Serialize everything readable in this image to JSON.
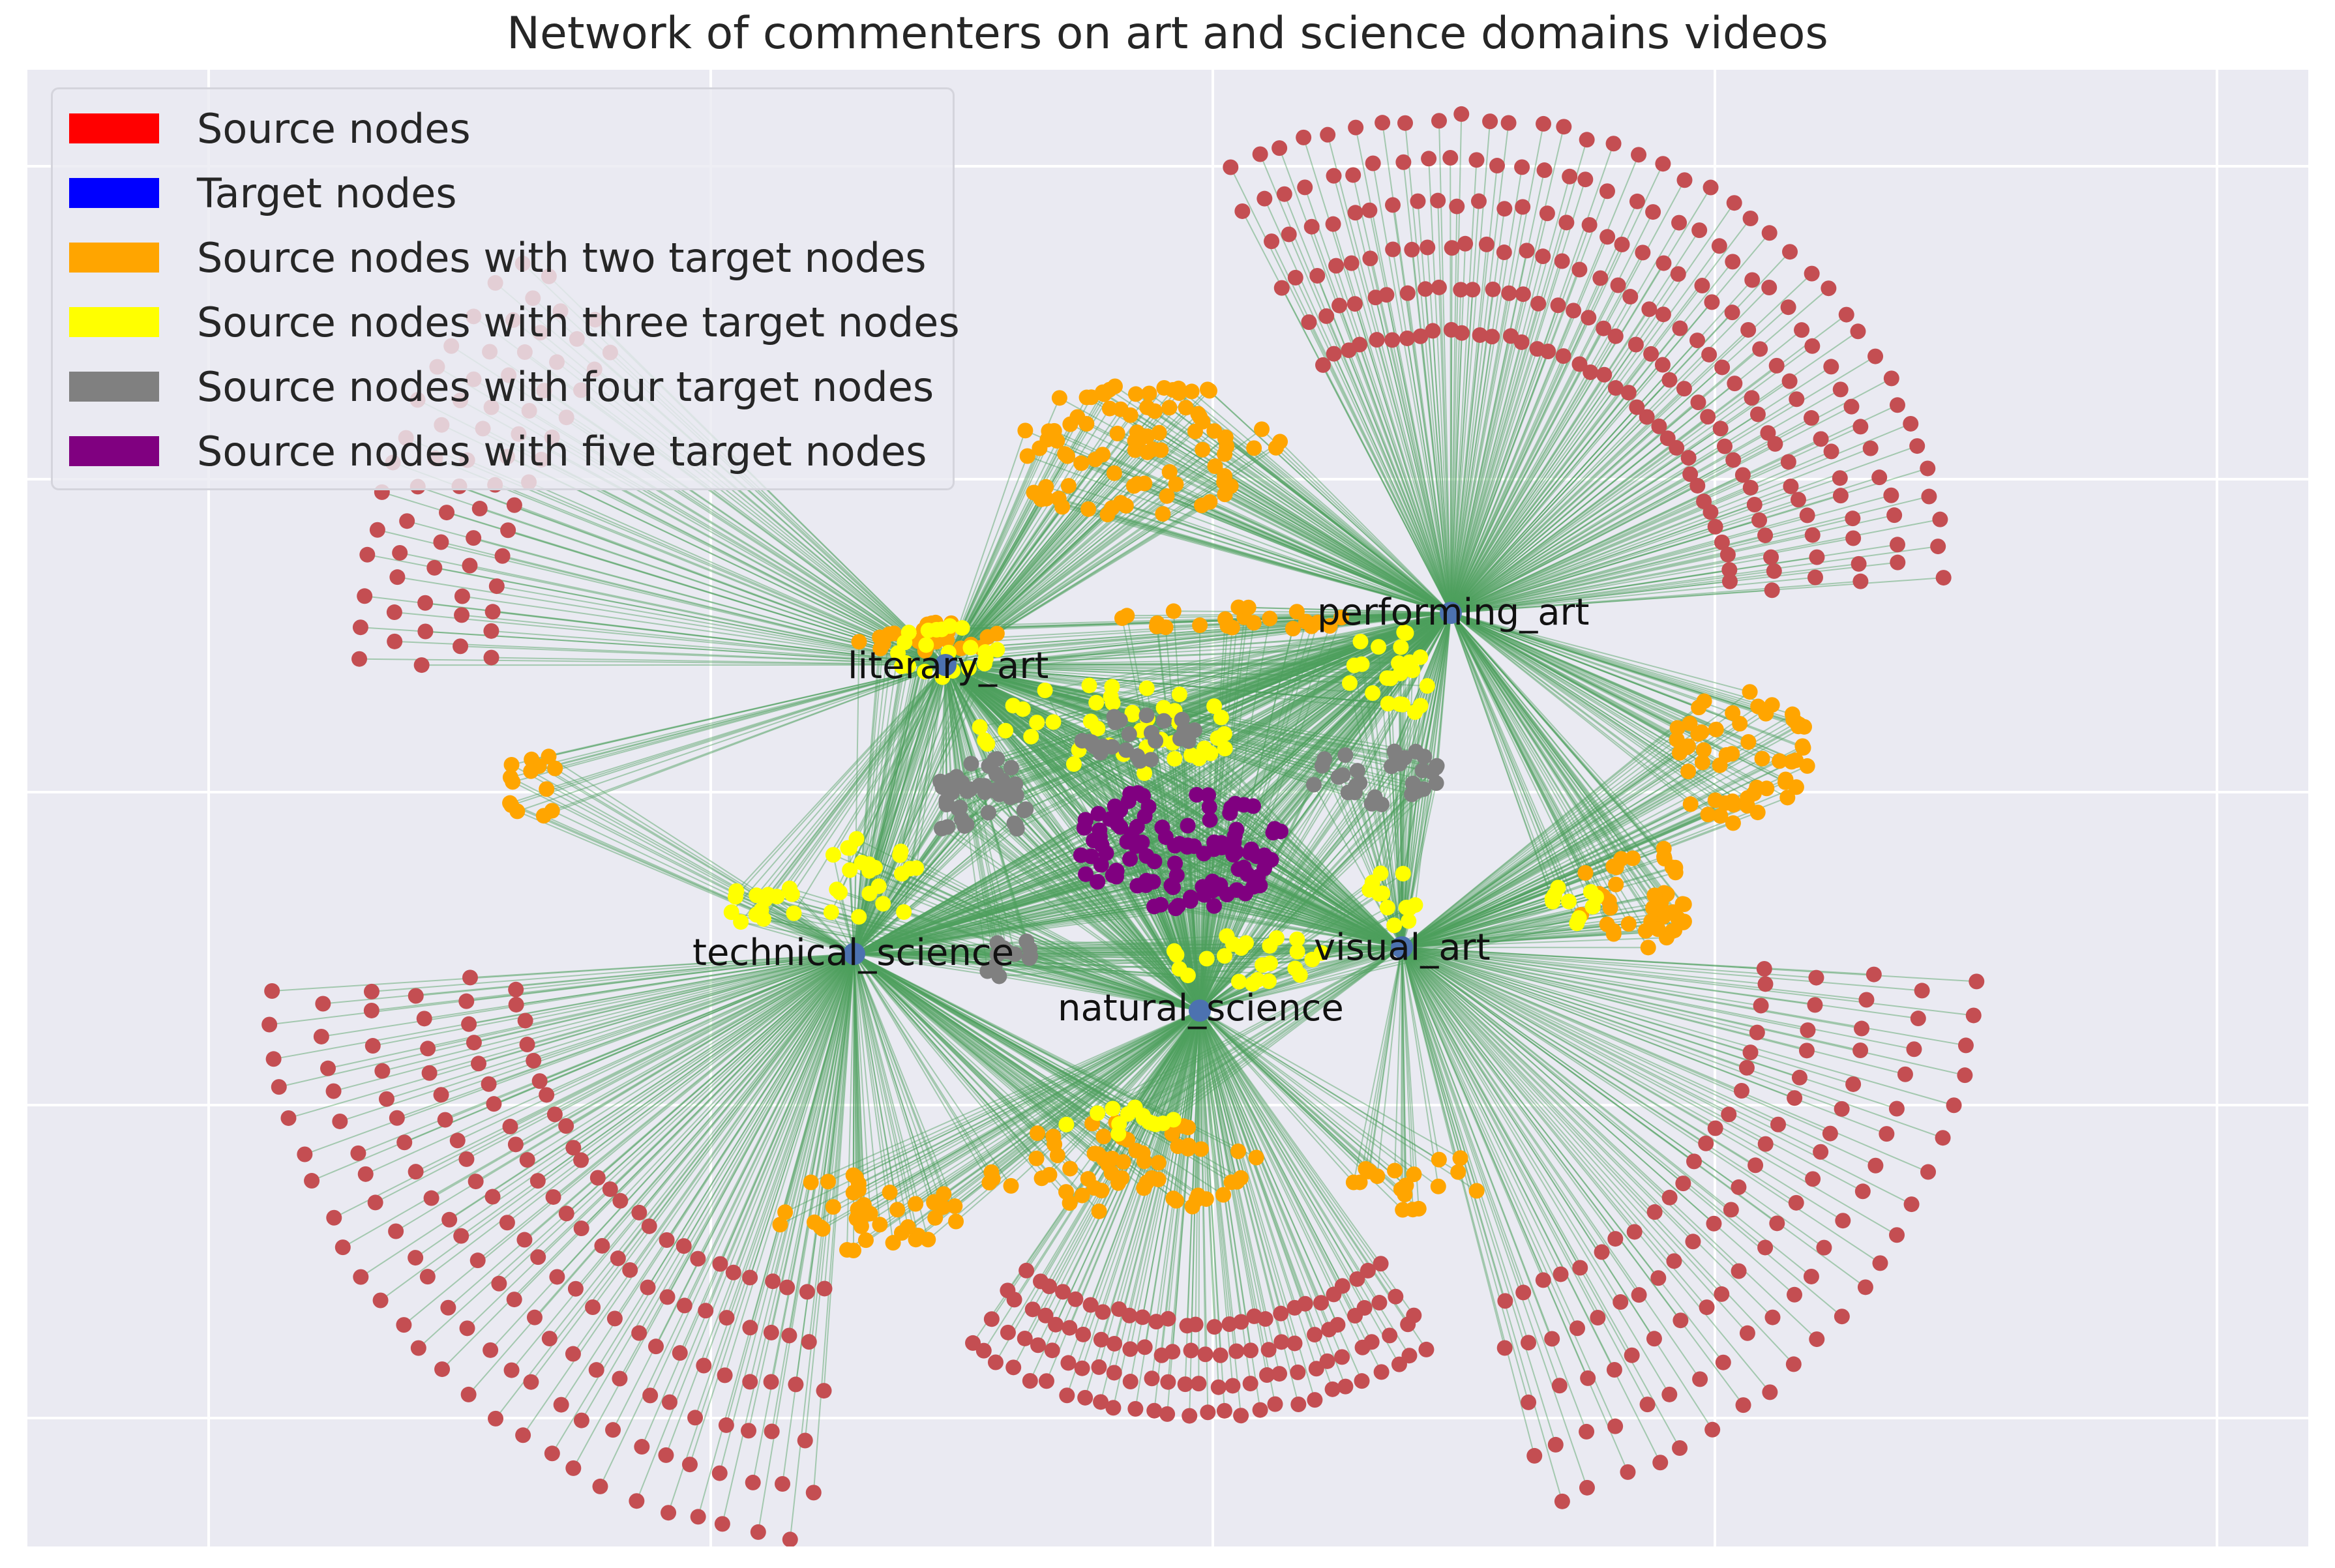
{
  "title": "Network of commenters on art and science domains videos",
  "legend": [
    {
      "label": "Source nodes",
      "color": "#ff0000"
    },
    {
      "label": "Target nodes",
      "color": "#0000ff"
    },
    {
      "label": "Source nodes with two target nodes",
      "color": "#ffa500"
    },
    {
      "label": "Source nodes with three target nodes",
      "color": "#ffff00"
    },
    {
      "label": "Source nodes with four target nodes",
      "color": "#808080"
    },
    {
      "label": "Source nodes with five target nodes",
      "color": "#800080"
    }
  ],
  "colors": {
    "background": "#eaeaf2",
    "grid": "#ffffff",
    "edge": "#4e9f5e",
    "source_node": "#c44e52",
    "target_node": "#4c72b0",
    "two_targets": "#ffa500",
    "three_targets": "#ffff00",
    "four_targets": "#808080",
    "five_targets": "#800080"
  },
  "targets": [
    "performing_art",
    "literary_art",
    "technical_science",
    "natural_science",
    "visual_art"
  ]
}
